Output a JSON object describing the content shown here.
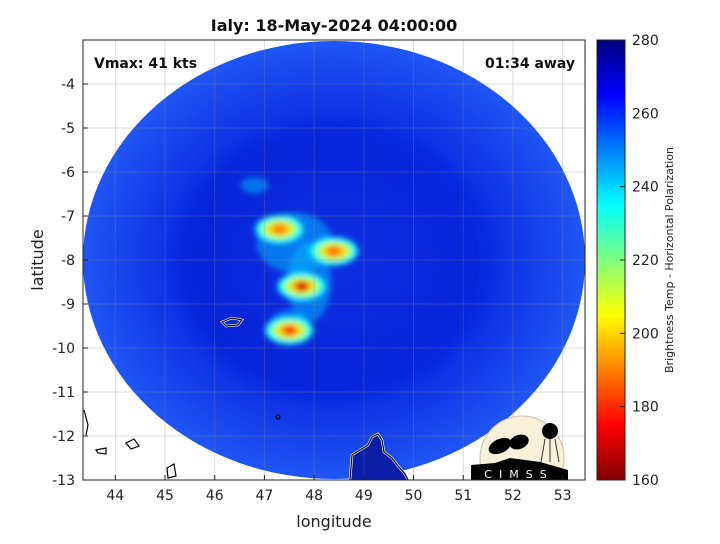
{
  "chart_data": {
    "type": "heatmap",
    "title": "Ialy: 18-May-2024 04:00:00",
    "xlabel": "longitude",
    "ylabel": "latitude",
    "xlim": [
      43.35,
      53.45
    ],
    "ylim": [
      -13,
      -3
    ],
    "xticks": [
      44,
      45,
      46,
      47,
      48,
      49,
      50,
      51,
      52,
      53
    ],
    "yticks": [
      -4,
      -5,
      -6,
      -7,
      -8,
      -9,
      -10,
      -11,
      -12,
      -13
    ],
    "grid": true,
    "colormap": "jet",
    "colorbar": {
      "label": "Brightness Temp - Horizontal Polarization",
      "range": [
        160,
        280
      ],
      "ticks": [
        160,
        180,
        200,
        220,
        240,
        260,
        280
      ],
      "placement": "right"
    },
    "swath_background_value": 262,
    "cold_cores": [
      {
        "lon": 47.3,
        "lat": -7.3,
        "value": 190
      },
      {
        "lon": 48.4,
        "lat": -7.8,
        "value": 188
      },
      {
        "lon": 47.75,
        "lat": -8.6,
        "value": 170
      },
      {
        "lon": 47.5,
        "lat": -9.6,
        "value": 180
      }
    ],
    "annotations": {
      "vmax": "Vmax: 41 kts",
      "away": "01:34 away"
    },
    "logo": "CIMSS"
  }
}
